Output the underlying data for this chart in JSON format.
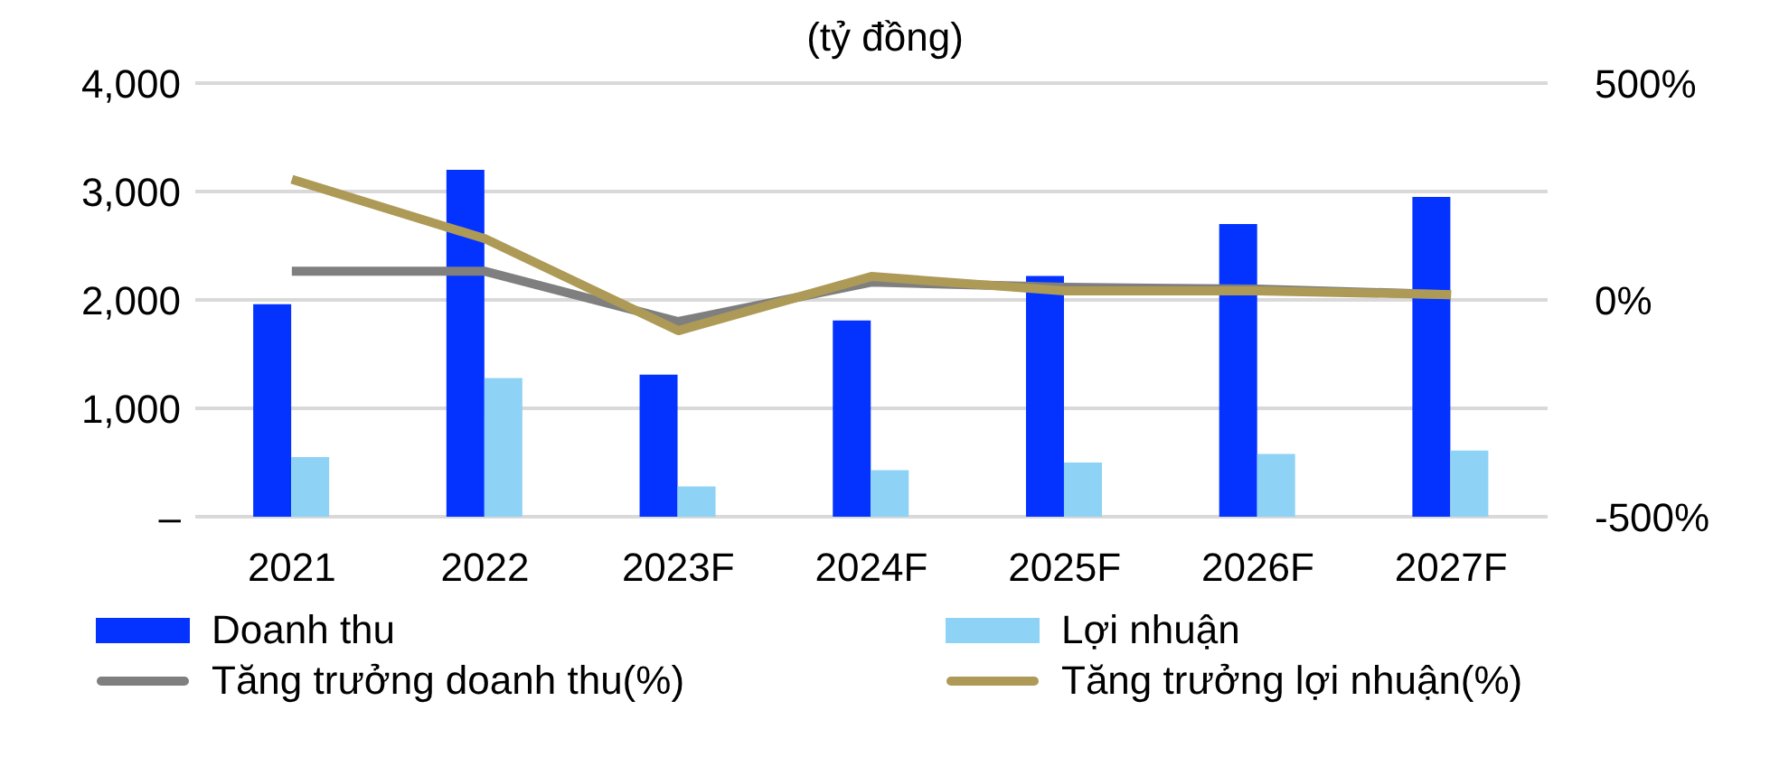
{
  "chart_data": {
    "type": "bar",
    "title": "(tỷ đồng)",
    "categories": [
      "2021",
      "2022",
      "2023F",
      "2024F",
      "2025F",
      "2026F",
      "2027F"
    ],
    "series": [
      {
        "name": "Doanh thu",
        "color": "#0433ff",
        "values": [
          1960,
          3200,
          1310,
          1810,
          2220,
          2700,
          2950
        ]
      },
      {
        "name": "Lợi nhuận",
        "color": "#8ed3f5",
        "values": [
          550,
          1280,
          280,
          430,
          500,
          580,
          610
        ]
      },
      {
        "name": "Tăng trưởng doanh thu(%)",
        "type": "line",
        "axis": "y2",
        "color": "#7f7f7f",
        "values": [
          66,
          66,
          -50,
          41,
          29,
          25,
          12
        ]
      },
      {
        "name": "Tăng trưởng lợi nhuận(%)",
        "type": "line",
        "axis": "y2",
        "color": "#ae9a57",
        "values": [
          278,
          141,
          -71,
          54,
          21,
          21,
          12
        ]
      }
    ],
    "ylim": [
      0,
      4000
    ],
    "yticks": [
      {
        "value": 0,
        "label": "–"
      },
      {
        "value": 1000,
        "label": "1,000"
      },
      {
        "value": 2000,
        "label": "2,000"
      },
      {
        "value": 3000,
        "label": "3,000"
      },
      {
        "value": 4000,
        "label": "4,000"
      }
    ],
    "y2lim": [
      -500,
      500
    ],
    "y2ticks": [
      {
        "value": -500,
        "label": "-500%"
      },
      {
        "value": 0,
        "label": "0%"
      },
      {
        "value": 500,
        "label": "500%"
      }
    ],
    "grid": "y",
    "legend": "bottom",
    "marker": "none",
    "line_style": "solid"
  }
}
